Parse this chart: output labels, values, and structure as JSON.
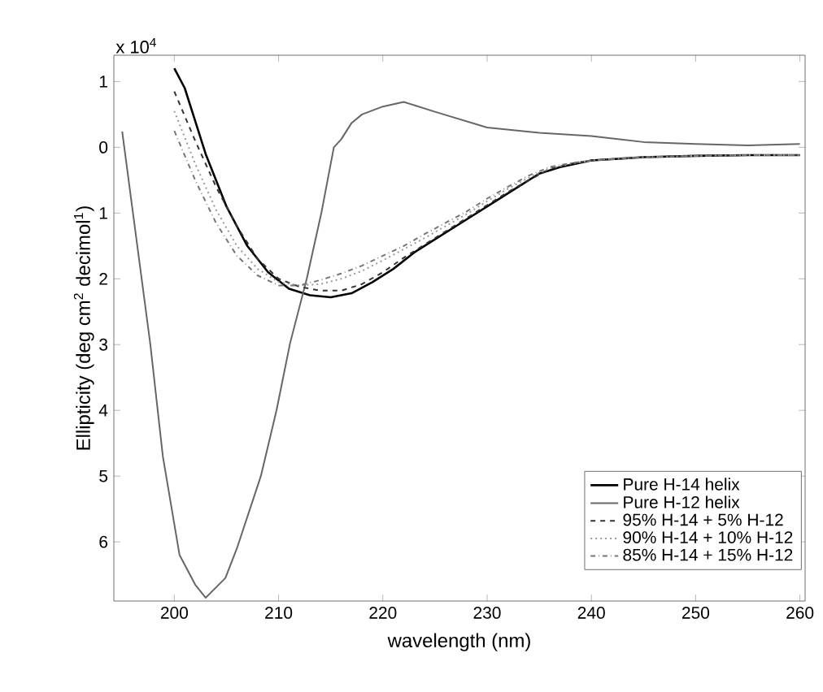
{
  "chart_data": {
    "type": "line",
    "xlabel": "wavelength (nm)",
    "ylabel": "Ellipticity (deg cm$^{2}$ decimol$^{1}$)",
    "annotations": [
      "x 10$^{4}$"
    ],
    "xlim": [
      194.2,
      260.5
    ],
    "ylim": [
      -6.9,
      1.4
    ],
    "xticks": [
      200,
      210,
      220,
      230,
      240,
      250,
      260
    ],
    "yticks": [
      {
        "value": 1,
        "label": "1"
      },
      0,
      {
        "value": -1,
        "label": "1"
      },
      {
        "value": -2,
        "label": "2"
      },
      {
        "value": -3,
        "label": "3"
      },
      {
        "value": -4,
        "label": "4"
      },
      {
        "value": -5,
        "label": "5"
      },
      {
        "value": -6,
        "label": "6"
      }
    ],
    "grid": false,
    "legend": "bottom right",
    "marker": "none",
    "series": [
      {
        "name": "Pure H-14 helix",
        "color": "#000000",
        "line_style": "solid",
        "x": [
          200,
          201,
          202,
          203,
          205,
          207,
          209,
          211,
          213,
          215,
          217,
          219,
          221,
          223,
          225,
          227,
          229,
          231,
          233,
          235,
          237,
          240,
          245,
          250,
          255,
          260
        ],
        "values": [
          1.2,
          0.9,
          0.4,
          -0.1,
          -0.9,
          -1.5,
          -1.9,
          -2.15,
          -2.25,
          -2.28,
          -2.22,
          -2.05,
          -1.85,
          -1.6,
          -1.4,
          -1.2,
          -1.0,
          -0.8,
          -0.6,
          -0.4,
          -0.3,
          -0.2,
          -0.15,
          -0.13,
          -0.12,
          -0.12
        ]
      },
      {
        "name": "Pure H-12 helix",
        "color": "#666666",
        "line_style": "solid",
        "x": [
          195,
          197.7,
          198.9,
          200.5,
          202,
          203,
          204.9,
          206,
          208.3,
          209.8,
          211.1,
          212.7,
          214.1,
          215.3,
          216,
          217,
          218,
          220,
          222,
          225,
          230,
          235,
          240,
          245,
          250,
          255,
          260
        ],
        "values": [
          0.24,
          -3.0,
          -4.7,
          -6.2,
          -6.65,
          -6.85,
          -6.55,
          -6.1,
          -5.0,
          -4.0,
          -2.98,
          -2.0,
          -1.0,
          0.0,
          0.12,
          0.37,
          0.5,
          0.62,
          0.69,
          0.54,
          0.3,
          0.22,
          0.17,
          0.08,
          0.05,
          0.03,
          0.05
        ]
      },
      {
        "name": "95% H-14 + 5% H-12",
        "color": "#333333",
        "line_style": "dashed",
        "x": [
          200,
          202,
          204,
          206,
          208,
          210,
          212,
          214,
          216,
          218,
          220,
          222,
          224,
          226,
          228,
          230,
          232,
          234,
          236,
          238,
          240,
          245,
          250,
          255,
          260
        ],
        "values": [
          0.85,
          0.1,
          -0.6,
          -1.2,
          -1.7,
          -2.0,
          -2.12,
          -2.18,
          -2.18,
          -2.08,
          -1.9,
          -1.68,
          -1.48,
          -1.28,
          -1.08,
          -0.88,
          -0.68,
          -0.5,
          -0.33,
          -0.25,
          -0.2,
          -0.15,
          -0.13,
          -0.12,
          -0.12
        ]
      },
      {
        "name": "90% H-14 + 10% H-12",
        "color": "#999999",
        "line_style": "dotted",
        "x": [
          200,
          202,
          204,
          206,
          208,
          210,
          212,
          214,
          216,
          218,
          220,
          222,
          224,
          226,
          228,
          230,
          232,
          234,
          236,
          238,
          240,
          245,
          250,
          255,
          260
        ],
        "values": [
          0.55,
          -0.25,
          -0.95,
          -1.5,
          -1.85,
          -2.05,
          -2.1,
          -2.08,
          -2.0,
          -1.88,
          -1.72,
          -1.55,
          -1.38,
          -1.2,
          -1.02,
          -0.82,
          -0.63,
          -0.46,
          -0.32,
          -0.25,
          -0.2,
          -0.15,
          -0.13,
          -0.12,
          -0.12
        ]
      },
      {
        "name": "85% H-14 + 15% H-12",
        "color": "#777777",
        "line_style": "dashdot",
        "x": [
          200,
          202,
          204,
          206,
          208,
          210,
          212,
          214,
          216,
          218,
          220,
          222,
          224,
          226,
          228,
          230,
          232,
          234,
          236,
          238,
          240,
          245,
          250,
          255,
          260
        ],
        "values": [
          0.25,
          -0.5,
          -1.15,
          -1.65,
          -1.95,
          -2.1,
          -2.1,
          -2.02,
          -1.92,
          -1.8,
          -1.65,
          -1.5,
          -1.32,
          -1.15,
          -0.98,
          -0.78,
          -0.6,
          -0.43,
          -0.3,
          -0.24,
          -0.2,
          -0.15,
          -0.13,
          -0.12,
          -0.12
        ]
      }
    ]
  }
}
